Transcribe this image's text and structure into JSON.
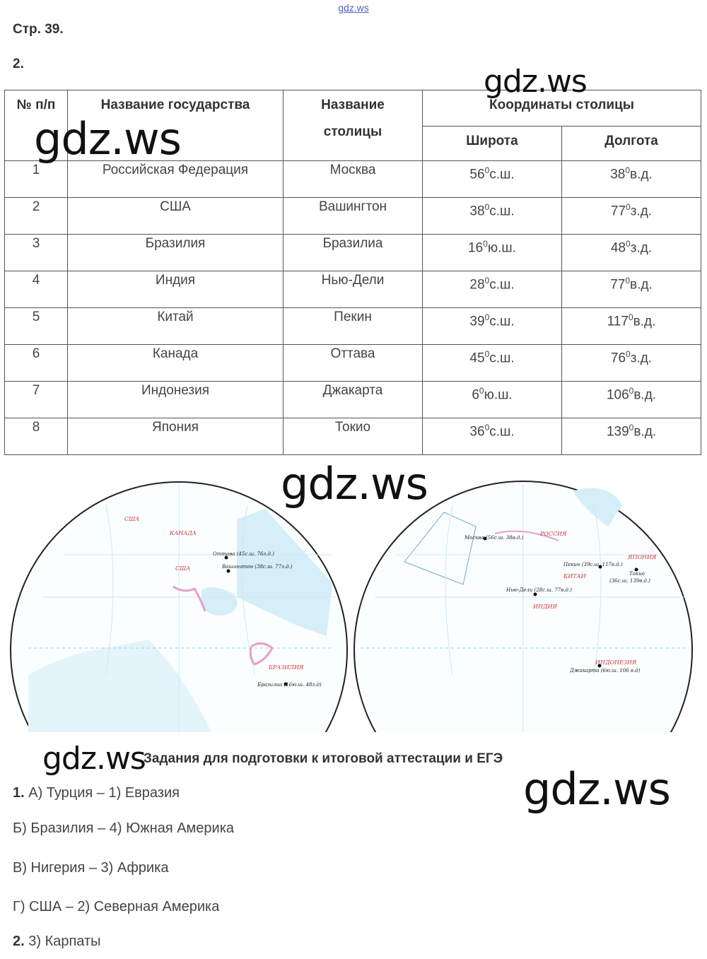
{
  "site_link": "gdz.ws",
  "page_ref": "Стр. 39.",
  "task_number": "2.",
  "table": {
    "headers": {
      "num": "№ п/п",
      "country": "Название государства",
      "capital": "Название столицы",
      "coords": "Координаты столицы",
      "lat": "Широта",
      "lon": "Долгота"
    },
    "rows": [
      {
        "n": "1",
        "country": "Российская Федерация",
        "capital": "Москва",
        "lat": "56",
        "lat_dir": "с.ш.",
        "lon": "38",
        "lon_dir": "в.д."
      },
      {
        "n": "2",
        "country": "США",
        "capital": "Вашингтон",
        "lat": "38",
        "lat_dir": "с.ш.",
        "lon": "77",
        "lon_dir": "з.д."
      },
      {
        "n": "3",
        "country": "Бразилия",
        "capital": "Бразилиа",
        "lat": "16",
        "lat_dir": "ю.ш.",
        "lon": "48",
        "lon_dir": "з.д."
      },
      {
        "n": "4",
        "country": "Индия",
        "capital": "Нью-Дели",
        "lat": "28",
        "lat_dir": "с.ш.",
        "lon": "77",
        "lon_dir": "в.д."
      },
      {
        "n": "5",
        "country": "Китай",
        "capital": "Пекин",
        "lat": "39",
        "lat_dir": "с.ш.",
        "lon": "117",
        "lon_dir": "в.д."
      },
      {
        "n": "6",
        "country": "Канада",
        "capital": "Оттава",
        "lat": "45",
        "lat_dir": "с.ш.",
        "lon": "76",
        "lon_dir": "з.д."
      },
      {
        "n": "7",
        "country": "Индонезия",
        "capital": "Джакарта",
        "lat": "6",
        "lat_dir": "ю.ш.",
        "lon": "106",
        "lon_dir": "в.д."
      },
      {
        "n": "8",
        "country": "Япония",
        "capital": "Токио",
        "lat": "36",
        "lat_dir": "с.ш.",
        "lon": "139",
        "lon_dir": "в.д."
      }
    ],
    "degree_mark": "0"
  },
  "watermarks": [
    "gdz.ws",
    "gdz.ws",
    "gdz.ws",
    "gdz.ws",
    "gdz.ws"
  ],
  "map": {
    "west_labels": {
      "usa_top": "США",
      "canada": "КАНАДА",
      "usa": "США",
      "ottawa": "Оттава (45с.ш. 76з.д.)",
      "washington": "Вашингтон (38с.ш. 77з.д.)",
      "brazil": "БРАЗИЛИЯ",
      "brasilia": "Бразилиа (16ю.ш. 48з.д)"
    },
    "east_labels": {
      "moscow": "Москва (56с.ш. 38в.д.)",
      "russia": "РОССИЯ",
      "beijing": "Пекин (39с.ш. 117в.д.)",
      "china": "КИТАИ",
      "japan": "ЯПОНИЯ",
      "tokyo": "Токио",
      "tokyo_coords": "(36с.ш. 139в.д.)",
      "delhi": "Нью-Дели (28с.ш. 77в.д.)",
      "india": "ИНДИЯ",
      "indonesia": "ИНДОНЕЗИЯ",
      "jakarta": "Джакарта (6ю.ш. 106 в.д)"
    },
    "colors": {
      "water": "#d6eef8",
      "lines": "#9ad0ea",
      "border": "#e6a0c8",
      "label_red": "#d23b3b"
    }
  },
  "ege_title": "Задания для подготовки к итоговой аттестации и ЕГЭ",
  "answers": [
    {
      "num": "1.",
      "text": " А) Турция – 1) Евразия"
    },
    {
      "num": "",
      "text": "Б) Бразилия – 4) Южная Америка"
    },
    {
      "num": "",
      "text": "В) Нигерия – 3) Африка"
    },
    {
      "num": "",
      "text": "Г) США – 2) Северная Америка"
    },
    {
      "num": "2.",
      "text": " 3) Карпаты"
    }
  ]
}
